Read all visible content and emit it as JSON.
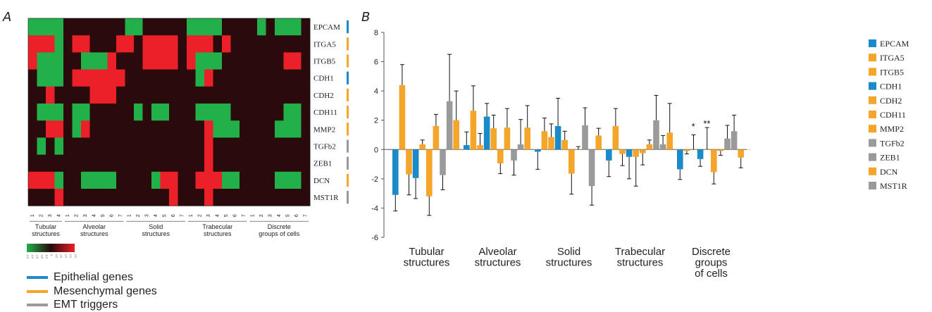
{
  "panels": {
    "a_label": "A",
    "b_label": "B"
  },
  "colors": {
    "epithelial": "#1a8ac9",
    "mesenchymal": "#f5a52a",
    "emt": "#9a9a9a",
    "heat_high": "#ec2028",
    "heat_low": "#22b04a",
    "heat_mid": "#2a0a0a"
  },
  "heatmap": {
    "genes": [
      {
        "name": "EPCAM",
        "group": "epithelial"
      },
      {
        "name": "ITGA5",
        "group": "mesenchymal"
      },
      {
        "name": "ITGB5",
        "group": "mesenchymal"
      },
      {
        "name": "CDH1",
        "group": "epithelial"
      },
      {
        "name": "CDH2",
        "group": "mesenchymal"
      },
      {
        "name": "CDH11",
        "group": "mesenchymal"
      },
      {
        "name": "MMP2",
        "group": "mesenchymal"
      },
      {
        "name": "TGFb2",
        "group": "emt"
      },
      {
        "name": "ZEB1",
        "group": "emt"
      },
      {
        "name": "DCN",
        "group": "mesenchymal"
      },
      {
        "name": "MST1R",
        "group": "emt"
      }
    ],
    "groups": [
      {
        "label": [
          "Tubular",
          "structures"
        ],
        "samples": [
          "1",
          "2",
          "3",
          "4"
        ]
      },
      {
        "label": [
          "Alveolar",
          "structures"
        ],
        "samples": [
          "1",
          "2",
          "3",
          "4",
          "5",
          "6",
          "7"
        ]
      },
      {
        "label": [
          "Solid",
          "structures"
        ],
        "samples": [
          "1",
          "2",
          "3",
          "4",
          "5",
          "6",
          "7"
        ]
      },
      {
        "label": [
          "Trabecular",
          "structures"
        ],
        "samples": [
          "1",
          "2",
          "3",
          "4",
          "5",
          "6",
          "7"
        ]
      },
      {
        "label": [
          "Discrete",
          "groups of cells"
        ],
        "samples": [
          "1",
          "2",
          "3",
          "4",
          "5",
          "6",
          "7"
        ]
      }
    ],
    "matrix": [
      [
        -1,
        -1,
        -1,
        -1,
        0,
        0,
        0,
        0,
        0,
        0,
        0,
        -1,
        -1,
        0,
        0,
        0,
        0,
        0,
        -1,
        -1,
        -1,
        -1,
        0,
        0,
        0,
        0,
        -1,
        0,
        -1,
        -1,
        -1,
        0
      ],
      [
        1,
        1,
        1,
        -1,
        0,
        1,
        1,
        0,
        0,
        0,
        1,
        1,
        0,
        1,
        1,
        1,
        1,
        0,
        1,
        1,
        1,
        0,
        1,
        0,
        0,
        0,
        0,
        0,
        0,
        0,
        0,
        0
      ],
      [
        1,
        -1,
        -1,
        -1,
        0,
        0,
        -1,
        -1,
        -1,
        1,
        0,
        0,
        0,
        1,
        1,
        1,
        1,
        0,
        1,
        -1,
        -1,
        -1,
        0,
        0,
        0,
        0,
        0,
        0,
        0,
        1,
        1,
        0
      ],
      [
        0,
        -1,
        -1,
        -1,
        0,
        1,
        1,
        1,
        1,
        1,
        1,
        0,
        0,
        0,
        0,
        0,
        0,
        0,
        0,
        -1,
        1,
        0,
        0,
        0,
        0,
        0,
        0,
        0,
        0,
        0,
        0,
        0
      ],
      [
        0,
        0,
        1,
        0,
        0,
        0,
        0,
        1,
        1,
        1,
        0,
        0,
        0,
        0,
        0,
        0,
        0,
        0,
        0,
        0,
        0,
        0,
        0,
        0,
        0,
        0,
        0,
        0,
        0,
        0,
        0,
        0
      ],
      [
        0,
        -1,
        -1,
        -1,
        0,
        -1,
        -1,
        0,
        0,
        0,
        0,
        0,
        -1,
        0,
        -1,
        -1,
        0,
        0,
        0,
        -1,
        -1,
        -1,
        -1,
        0,
        0,
        0,
        0,
        0,
        0,
        -1,
        -1,
        0
      ],
      [
        0,
        0,
        1,
        1,
        0,
        -1,
        1,
        0,
        0,
        0,
        0,
        0,
        0,
        0,
        0,
        0,
        0,
        0,
        0,
        0,
        1,
        -1,
        -1,
        -1,
        0,
        0,
        0,
        0,
        -1,
        -1,
        -1,
        0
      ],
      [
        0,
        -1,
        0,
        -1,
        0,
        0,
        0,
        0,
        0,
        0,
        0,
        0,
        0,
        0,
        0,
        0,
        0,
        0,
        0,
        0,
        1,
        0,
        0,
        0,
        0,
        0,
        0,
        0,
        0,
        0,
        0,
        0
      ],
      [
        0,
        0,
        0,
        0,
        0,
        0,
        0,
        0,
        0,
        0,
        0,
        0,
        0,
        0,
        0,
        0,
        0,
        0,
        0,
        0,
        1,
        0,
        0,
        0,
        0,
        0,
        0,
        0,
        0,
        0,
        0,
        0
      ],
      [
        1,
        1,
        1,
        -1,
        0,
        0,
        -1,
        -1,
        -1,
        -1,
        0,
        0,
        0,
        0,
        -1,
        1,
        1,
        0,
        0,
        1,
        1,
        1,
        -1,
        -1,
        0,
        0,
        0,
        0,
        -1,
        -1,
        -1,
        0
      ],
      [
        0,
        0,
        0,
        1,
        0,
        0,
        0,
        0,
        0,
        0,
        0,
        0,
        0,
        0,
        0,
        0,
        1,
        0,
        0,
        0,
        1,
        0,
        0,
        0,
        0,
        0,
        0,
        0,
        0,
        0,
        0,
        0
      ]
    ],
    "scale_ticks": [
      "-2.5",
      "-2.0",
      "-1.5",
      "-1.0",
      "-0.5",
      "0",
      "0.5",
      "1.0",
      "1.5",
      "2.0",
      "2.5"
    ]
  },
  "legend": {
    "epithelial": "Epithelial genes",
    "mesenchymal": "Mesenchymal genes",
    "emt": "EMT triggers"
  },
  "chart_data": {
    "type": "bar",
    "categories": [
      [
        "Tubular",
        "structures"
      ],
      [
        "Alveolar",
        "structures"
      ],
      [
        "Solid",
        "structures"
      ],
      [
        "Trabecular",
        "structures"
      ],
      [
        "Discrete",
        "groups",
        "of cells"
      ]
    ],
    "ylim": [
      -6,
      8
    ],
    "yticks": [
      "-6",
      "-4",
      "-2",
      "0",
      "2",
      "4",
      "6",
      "8"
    ],
    "series": [
      {
        "name": "EPCAM",
        "group": "epithelial",
        "values": [
          -3.1,
          0.3,
          -0.15,
          -0.75,
          -1.35
        ],
        "errors": [
          1.1,
          0.9,
          1.2,
          1.1,
          0.7
        ]
      },
      {
        "name": "ITGA5",
        "group": "mesenchymal",
        "values": [
          4.4,
          2.65,
          1.25,
          1.6,
          -0.1
        ],
        "errors": [
          1.4,
          1.7,
          0.9,
          1.2,
          0.2
        ]
      },
      {
        "name": "ITGB5",
        "group": "mesenchymal",
        "values": [
          -1.7,
          0.3,
          0.85,
          -0.3,
          0.0
        ],
        "errors": [
          1.4,
          0.8,
          0.9,
          0.8,
          1.0
        ]
      },
      {
        "name": "CDH1",
        "group": "epithelial",
        "values": [
          -1.95,
          2.25,
          1.6,
          -0.5,
          -0.65
        ],
        "errors": [
          1.4,
          0.9,
          1.9,
          1.5,
          0.5
        ]
      },
      {
        "name": "CDH2",
        "group": "mesenchymal",
        "values": [
          0.35,
          1.45,
          0.65,
          -0.5,
          0.0
        ],
        "errors": [
          0.3,
          0.9,
          0.6,
          2.0,
          1.5
        ]
      },
      {
        "name": "CDH11",
        "group": "mesenchymal",
        "values": [
          -3.2,
          -0.95,
          -1.65,
          -0.25,
          -1.55
        ],
        "errors": [
          1.3,
          0.7,
          1.4,
          0.8,
          0.8
        ]
      },
      {
        "name": "MMP2",
        "group": "mesenchymal",
        "values": [
          1.6,
          1.5,
          0.0,
          0.35,
          -0.1
        ],
        "errors": [
          0.8,
          1.3,
          0.2,
          0.3,
          0.3
        ]
      },
      {
        "name": "TGFb2",
        "group": "emt",
        "values": [
          -1.75,
          -0.75,
          1.65,
          2.0,
          0.75
        ],
        "errors": [
          1.0,
          1.0,
          1.2,
          1.7,
          0.9
        ]
      },
      {
        "name": "ZEB1",
        "group": "emt",
        "values": [
          3.3,
          0.35,
          -2.5,
          0.35,
          1.25
        ],
        "errors": [
          3.2,
          1.7,
          1.3,
          0.6,
          1.1
        ]
      },
      {
        "name": "DCN",
        "group": "mesenchymal",
        "values": [
          2.0,
          1.5,
          0.95,
          1.15,
          -0.55
        ],
        "errors": [
          2.0,
          1.5,
          0.5,
          2.0,
          0.7
        ]
      },
      {
        "name": "MST1R",
        "group": "emt",
        "values": [
          0,
          0,
          0,
          0,
          0
        ],
        "errors": [
          0,
          0,
          0,
          0,
          0
        ]
      }
    ],
    "annotations": [
      {
        "text": "*",
        "category": 4
      },
      {
        "text": "**",
        "category": 4
      }
    ]
  }
}
